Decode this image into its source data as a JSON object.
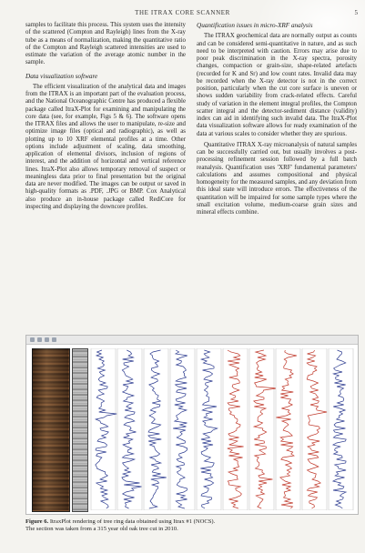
{
  "header": {
    "running_head": "THE ITRAX CORE SCANNER",
    "page_number": "5"
  },
  "left_column": {
    "p1": "samples to facilitate this process. This system uses the intensity of the scattered (Compton and Rayleigh) lines from the X-ray tube as a means of normalization, making the quantitative ratio of the Compton and Rayleigh scattered intensities are used to estimate the variation of the average atomic number in the sample.",
    "section_title": "Data visualization software",
    "p2": "The efficient visualization of the analytical data and images from the ITRAX is an important part of the evaluation process, and the National Oceanographic Centre has produced a flexible package called ItraX-Plot for examining and manipulating the core data (see, for example, Figs 5 & 6). The software opens the ITRAX files and allows the user to manipulate, re-size and optimize image files (optical and radiographic), as well as plotting up to 10 XRF elemental profiles at a time. Other options include adjustment of scaling, data smoothing, application of elemental divisors, inclusion of regions of interest, and the addition of horizontal and vertical reference lines. ItraX-Plot also allows temporary removal of suspect or meaningless data prior to final presentation but the original data are never modified. The images can be output or saved in high-quality formats as .PDF, .JPG or BMP. Cox Analytical also produce an in-house package called RediCore for inspecting and displaying the downcore profiles."
  },
  "right_column": {
    "section_title": "Quantification issues in micro-XRF analysis",
    "p1": "The ITRAX geochemical data are normally output as counts and can be considered semi-quantitative in nature, and as such need to be interpreted with caution. Errors may arise due to poor peak discrimination in the X-ray spectra, porosity changes, compaction or grain-size, shape-related artefacts (recorded for K and Sr) and low count rates. Invalid data may be recorded when the X-ray detector is not in the correct position, particularly when the cut core surface is uneven or shows sudden variability from crack-related effects. Careful study of variation in the element integral profiles, the Compton scatter integral and the detector-sediment distance (validity) index can aid in identifying such invalid data. The ItraX-Plot data visualization software allows for ready examination of the data at various scales to consider whether they are spurious.",
    "p2": "Quantitative ITRAX X-ray microanalysis of natural samples can be successfully carried out, but usually involves a post-processing refinement session followed by a full batch reanalysis. Quantification uses 'XRF' fundamental parameters' calculations and assumes compositional and physical homogeneity for the measured samples, and any deviation from this ideal state will introduce errors. The effectiveness of the quantitation will be impaired for some sample types where the small excitation volume, medium-coarse grain sizes and mineral effects combine."
  },
  "figure": {
    "caption_label": "Figure 6.",
    "caption_line1": "ItraxPlot rendering of tree ring data obtained using Itrax #1 (NOCS).",
    "caption_line2": "The section was taken from a 315 year old oak tree cut in 2010.",
    "track_colors": [
      "#2b3a8f",
      "#2b3a8f",
      "#2b3a8f",
      "#2b3a8f",
      "#2b3a8f",
      "#c0392b",
      "#c0392b",
      "#c0392b",
      "#c0392b",
      "#2b3a8f"
    ]
  }
}
